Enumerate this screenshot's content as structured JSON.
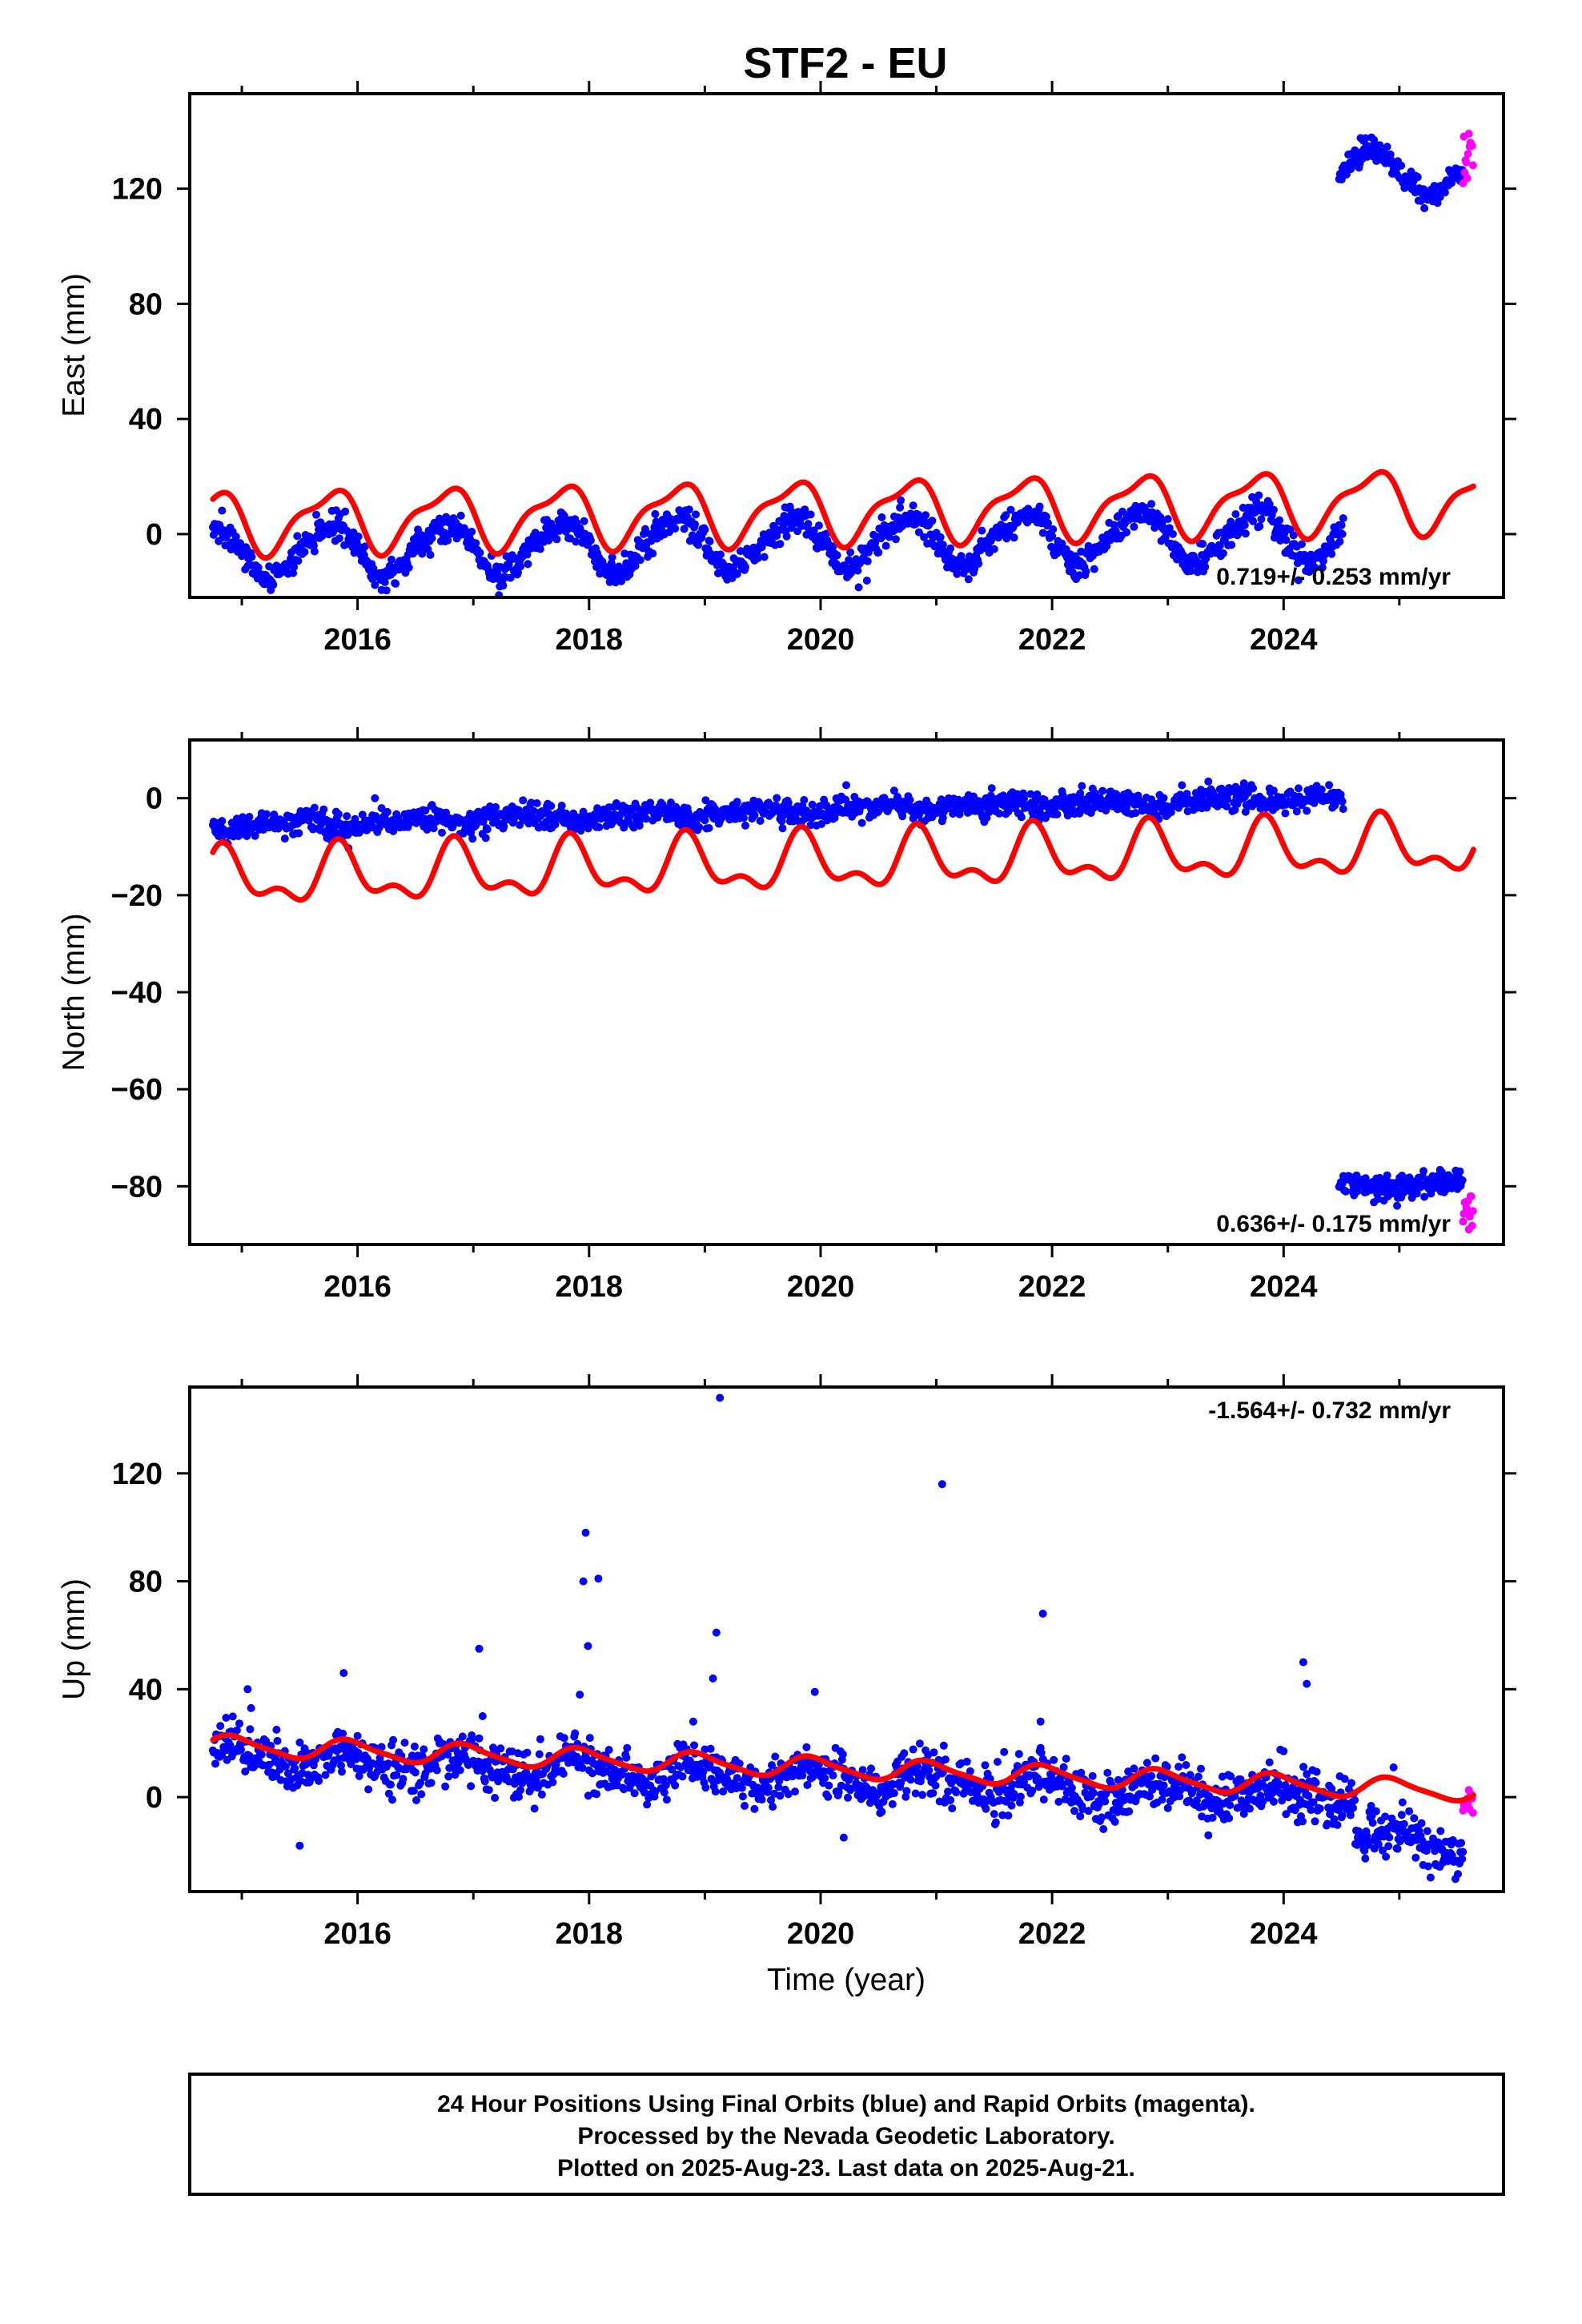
{
  "title": "STF2 - EU",
  "xlabel": "Time (year)",
  "footer": {
    "line1": "24 Hour Positions Using Final Orbits (blue) and Rapid Orbits (magenta).",
    "line2": "Processed by the Nevada Geodetic Laboratory.",
    "line3": "Plotted on 2025-Aug-23. Last data on 2025-Aug-21."
  },
  "colors": {
    "final_orbits": "#0000ff",
    "rapid_orbits": "#ff00ff",
    "model": "#ff0000",
    "frame": "#000000",
    "background": "#ffffff"
  },
  "chart_data": [
    {
      "type": "scatter",
      "component": "east",
      "ylabel": "East (mm)",
      "rate_label": "0.719+/- 0.253 mm/yr",
      "rate_label_position": "bottom-right",
      "xlim": [
        2014.55,
        2025.9
      ],
      "ylim": [
        -22,
        153
      ],
      "xticks": [
        2016,
        2018,
        2020,
        2022,
        2024
      ],
      "yticks": [
        0,
        40,
        80,
        120
      ],
      "grid": false,
      "segments": [
        {
          "name": "Final Orbits",
          "x_start": 2014.75,
          "x_end": 2024.52,
          "offset": -3,
          "trend": 0.719,
          "annual_amp": 8.5,
          "annual_phase": 0.5,
          "semi_amp": 1.2,
          "semi_phase": 0.3,
          "noise": 2.5,
          "color_key": "final_orbits"
        },
        {
          "name": "Final Orbits",
          "x_start": 2024.48,
          "x_end": 2025.55,
          "offset": 122,
          "trend": 0.719,
          "annual_amp": 8.0,
          "annual_phase": 0.5,
          "semi_amp": 0.0,
          "semi_phase": 0.0,
          "noise": 2.2,
          "color_key": "final_orbits"
        },
        {
          "name": "Rapid Orbits",
          "x_start": 2025.55,
          "x_end": 2025.64,
          "offset": 130,
          "trend": 0.0,
          "annual_amp": 0.0,
          "annual_phase": 0.0,
          "semi_amp": 0.0,
          "semi_phase": 0.0,
          "noise": 8.0,
          "color_key": "rapid_orbits"
        }
      ],
      "model": {
        "x_start": 2014.75,
        "x_end": 2025.64,
        "offset": 8,
        "trend": 0.719,
        "annual_amp": 10,
        "annual_phase": 0.5,
        "semi_amp": 3.5,
        "semi_phase": 0.3
      }
    },
    {
      "type": "scatter",
      "component": "north",
      "ylabel": "North (mm)",
      "rate_label": "0.636+/- 0.175 mm/yr",
      "rate_label_position": "bottom-right",
      "xlim": [
        2014.55,
        2025.9
      ],
      "ylim": [
        -92,
        12
      ],
      "xticks": [
        2016,
        2018,
        2020,
        2022,
        2024
      ],
      "yticks": [
        0,
        -20,
        -40,
        -60,
        -80
      ],
      "grid": false,
      "segments": [
        {
          "name": "Final Orbits",
          "x_start": 2014.75,
          "x_end": 2024.52,
          "offset": -2.5,
          "trend": 0.636,
          "annual_amp": 0.6,
          "annual_phase": 0.2,
          "semi_amp": 0.3,
          "semi_phase": 0.0,
          "noise": 1.3,
          "color_key": "final_orbits"
        },
        {
          "name": "Final Orbits",
          "x_start": 2024.48,
          "x_end": 2025.55,
          "offset": -83,
          "trend": 0.636,
          "annual_amp": 0.6,
          "annual_phase": 0.2,
          "semi_amp": 0.0,
          "semi_phase": 0.0,
          "noise": 1.2,
          "color_key": "final_orbits"
        },
        {
          "name": "Rapid Orbits",
          "x_start": 2025.55,
          "x_end": 2025.64,
          "offset": -84,
          "trend": 0.0,
          "annual_amp": 0.0,
          "annual_phase": 0.0,
          "semi_amp": 0.0,
          "semi_phase": 0.0,
          "noise": 2.5,
          "color_key": "rapid_orbits"
        }
      ],
      "model": {
        "x_start": 2014.75,
        "x_end": 2025.64,
        "offset": -13.5,
        "trend": 0.636,
        "annual_amp": 5,
        "annual_phase": 0.6,
        "semi_amp": 2.8,
        "semi_phase": 0.2
      }
    },
    {
      "type": "scatter",
      "component": "up",
      "ylabel": "Up (mm)",
      "rate_label": "-1.564+/- 0.732 mm/yr",
      "rate_label_position": "top-right",
      "xlim": [
        2014.55,
        2025.9
      ],
      "ylim": [
        -35,
        152
      ],
      "xticks": [
        2016,
        2018,
        2020,
        2022,
        2024
      ],
      "yticks": [
        0,
        40,
        80,
        120
      ],
      "grid": false,
      "segments": [
        {
          "name": "Final Orbits",
          "x_start": 2014.75,
          "x_end": 2024.62,
          "offset": 7,
          "trend": -1.564,
          "annual_amp": 3.5,
          "annual_phase": 0.68,
          "semi_amp": 0.8,
          "semi_phase": 0.2,
          "noise": 4.5,
          "color_key": "final_orbits"
        },
        {
          "name": "Final Orbits",
          "x_start": 2024.62,
          "x_end": 2025.55,
          "offset": -8,
          "trend": -1.564,
          "annual_amp": 4.0,
          "annual_phase": 0.68,
          "semi_amp": 0.0,
          "semi_phase": 0.0,
          "noise": 5.0,
          "color_key": "final_orbits"
        },
        {
          "name": "Rapid Orbits",
          "x_start": 2025.55,
          "x_end": 2025.64,
          "offset": -3,
          "trend": 0.0,
          "annual_amp": 0.0,
          "annual_phase": 0.0,
          "semi_amp": 0.0,
          "semi_phase": 0.0,
          "noise": 4.0,
          "color_key": "rapid_orbits"
        }
      ],
      "model": {
        "x_start": 2014.75,
        "x_end": 2025.64,
        "offset": 11,
        "trend": -1.564,
        "annual_amp": 3.6,
        "annual_phase": 0.68,
        "semi_amp": 0.8,
        "semi_phase": 0.2
      },
      "outliers": [
        [
          2015.05,
          40
        ],
        [
          2015.08,
          33
        ],
        [
          2015.3,
          25
        ],
        [
          2015.5,
          -18
        ],
        [
          2015.88,
          46
        ],
        [
          2017.05,
          55
        ],
        [
          2017.08,
          30
        ],
        [
          2017.92,
          38
        ],
        [
          2017.95,
          80
        ],
        [
          2017.97,
          98
        ],
        [
          2017.99,
          56
        ],
        [
          2018.08,
          81
        ],
        [
          2018.9,
          28
        ],
        [
          2019.07,
          44
        ],
        [
          2019.1,
          61
        ],
        [
          2019.13,
          148
        ],
        [
          2019.95,
          39
        ],
        [
          2020.2,
          -15
        ],
        [
          2021.05,
          116
        ],
        [
          2021.9,
          28
        ],
        [
          2021.92,
          68
        ],
        [
          2024.17,
          50
        ],
        [
          2024.2,
          42
        ],
        [
          2024.95,
          11
        ]
      ]
    }
  ]
}
